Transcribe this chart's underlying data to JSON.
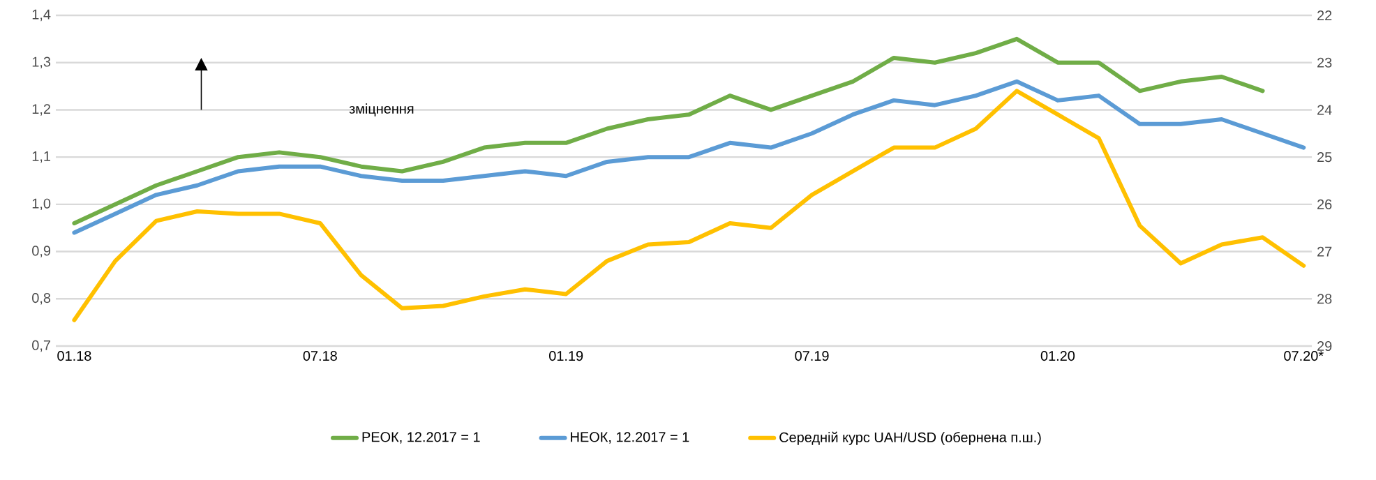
{
  "chart_data": {
    "type": "line",
    "categories": [
      "01.18",
      null,
      null,
      null,
      null,
      null,
      "07.18",
      null,
      null,
      null,
      null,
      null,
      "01.19",
      null,
      null,
      null,
      null,
      null,
      "07.19",
      null,
      null,
      null,
      null,
      null,
      "01.20",
      null,
      null,
      null,
      null,
      null,
      "07.20*"
    ],
    "series": [
      {
        "name": "РЕОК, 12.2017 = 1",
        "color": "#70ad47",
        "values": [
          0.96,
          1.0,
          1.04,
          1.07,
          1.1,
          1.11,
          1.1,
          1.08,
          1.07,
          1.09,
          1.12,
          1.13,
          1.13,
          1.16,
          1.18,
          1.19,
          1.23,
          1.2,
          1.23,
          1.26,
          1.31,
          1.3,
          1.32,
          1.35,
          1.3,
          1.3,
          1.24,
          1.26,
          1.27,
          1.24,
          null
        ]
      },
      {
        "name": "НЕОК, 12.2017 = 1",
        "color": "#5b9bd5",
        "values": [
          0.94,
          0.98,
          1.02,
          1.04,
          1.07,
          1.08,
          1.08,
          1.06,
          1.05,
          1.05,
          1.06,
          1.07,
          1.06,
          1.09,
          1.1,
          1.1,
          1.13,
          1.12,
          1.15,
          1.19,
          1.22,
          1.21,
          1.23,
          1.26,
          1.22,
          1.23,
          1.17,
          1.17,
          1.18,
          1.15,
          1.12
        ]
      },
      {
        "name": "Середній курс UAH/USD (обернена п.ш.)",
        "color": "#ffc000",
        "axis": "y2",
        "values": [
          28.45,
          27.2,
          26.35,
          26.15,
          26.2,
          26.2,
          26.4,
          27.5,
          28.2,
          28.15,
          27.95,
          27.8,
          27.9,
          27.2,
          26.85,
          26.8,
          26.4,
          26.5,
          25.8,
          25.3,
          24.8,
          24.8,
          24.4,
          23.6,
          24.1,
          24.6,
          26.45,
          27.25,
          26.85,
          26.7,
          27.3
        ]
      }
    ],
    "ylim": [
      0.7,
      1.4
    ],
    "yticks": [
      {
        "value": 0.7,
        "label": "0,7"
      },
      {
        "value": 0.8,
        "label": "0,8"
      },
      {
        "value": 0.9,
        "label": "0,9"
      },
      {
        "value": 1.0,
        "label": "1,0"
      },
      {
        "value": 1.1,
        "label": "1,1"
      },
      {
        "value": 1.2,
        "label": "1,2"
      },
      {
        "value": 1.3,
        "label": "1,3"
      },
      {
        "value": 1.4,
        "label": "1,4"
      }
    ],
    "y2lim": [
      29,
      22
    ],
    "y2ticks": [
      22,
      23,
      24,
      25,
      26,
      27,
      28,
      29
    ],
    "annotations": [
      "зміцнення"
    ],
    "grid": "y",
    "legend": "bottom"
  }
}
